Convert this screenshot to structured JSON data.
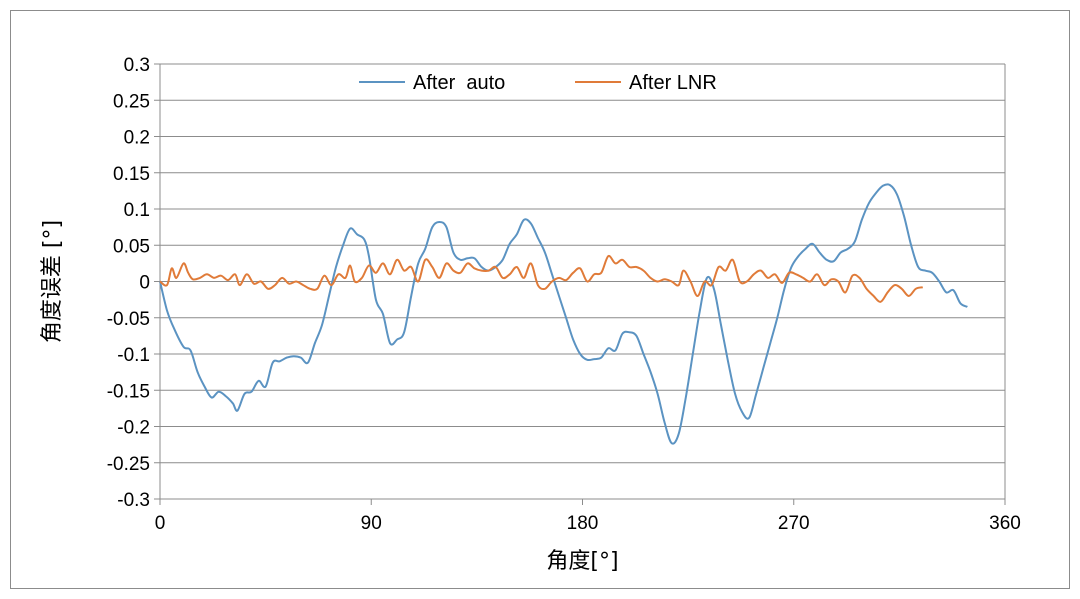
{
  "chart_data": {
    "type": "line",
    "title": "",
    "xlabel": "角度[°]",
    "ylabel": "角度误差 [°]",
    "xlim": [
      0,
      360
    ],
    "ylim": [
      -0.3,
      0.3
    ],
    "x_ticks": [
      "0",
      "90",
      "180",
      "270",
      "360"
    ],
    "y_ticks": [
      "0.3",
      "0.25",
      "0.2",
      "0.15",
      "0.1",
      "0.05",
      "0",
      "-0.05",
      "-0.1",
      "-0.15",
      "-0.2",
      "-0.25",
      "-0.3"
    ],
    "grid": true,
    "legend_position": "top-center",
    "series": [
      {
        "name": "After  auto",
        "color": "#5b93c2",
        "points": [
          [
            0,
            0
          ],
          [
            3,
            -0.04
          ],
          [
            6,
            -0.065
          ],
          [
            10,
            -0.09
          ],
          [
            13,
            -0.095
          ],
          [
            16,
            -0.125
          ],
          [
            19,
            -0.145
          ],
          [
            22,
            -0.16
          ],
          [
            25,
            -0.152
          ],
          [
            28,
            -0.158
          ],
          [
            31,
            -0.168
          ],
          [
            33,
            -0.178
          ],
          [
            36,
            -0.155
          ],
          [
            39,
            -0.152
          ],
          [
            42,
            -0.137
          ],
          [
            45,
            -0.145
          ],
          [
            48,
            -0.112
          ],
          [
            51,
            -0.11
          ],
          [
            54,
            -0.105
          ],
          [
            57,
            -0.103
          ],
          [
            60,
            -0.105
          ],
          [
            63,
            -0.112
          ],
          [
            66,
            -0.085
          ],
          [
            69,
            -0.06
          ],
          [
            72,
            -0.02
          ],
          [
            75,
            0.02
          ],
          [
            78,
            0.05
          ],
          [
            81,
            0.073
          ],
          [
            84,
            0.065
          ],
          [
            87,
            0.058
          ],
          [
            89,
            0.035
          ],
          [
            92,
            -0.025
          ],
          [
            95,
            -0.045
          ],
          [
            98,
            -0.085
          ],
          [
            101,
            -0.08
          ],
          [
            104,
            -0.07
          ],
          [
            107,
            -0.02
          ],
          [
            110,
            0.025
          ],
          [
            113,
            0.045
          ],
          [
            116,
            0.075
          ],
          [
            119,
            0.082
          ],
          [
            122,
            0.075
          ],
          [
            125,
            0.04
          ],
          [
            128,
            0.03
          ],
          [
            131,
            0.032
          ],
          [
            134,
            0.032
          ],
          [
            137,
            0.02
          ],
          [
            140,
            0.015
          ],
          [
            143,
            0.02
          ],
          [
            146,
            0.03
          ],
          [
            149,
            0.052
          ],
          [
            152,
            0.065
          ],
          [
            155,
            0.085
          ],
          [
            158,
            0.08
          ],
          [
            161,
            0.06
          ],
          [
            164,
            0.04
          ],
          [
            167,
            0.01
          ],
          [
            170,
            -0.02
          ],
          [
            173,
            -0.05
          ],
          [
            176,
            -0.08
          ],
          [
            179,
            -0.1
          ],
          [
            182,
            -0.108
          ],
          [
            185,
            -0.107
          ],
          [
            188,
            -0.105
          ],
          [
            191,
            -0.092
          ],
          [
            194,
            -0.095
          ],
          [
            197,
            -0.072
          ],
          [
            200,
            -0.07
          ],
          [
            203,
            -0.075
          ],
          [
            206,
            -0.1
          ],
          [
            209,
            -0.125
          ],
          [
            212,
            -0.155
          ],
          [
            215,
            -0.195
          ],
          [
            218,
            -0.223
          ],
          [
            221,
            -0.21
          ],
          [
            224,
            -0.16
          ],
          [
            227,
            -0.1
          ],
          [
            230,
            -0.04
          ],
          [
            233,
            0.005
          ],
          [
            236,
            -0.01
          ],
          [
            239,
            -0.06
          ],
          [
            242,
            -0.11
          ],
          [
            245,
            -0.155
          ],
          [
            248,
            -0.18
          ],
          [
            251,
            -0.188
          ],
          [
            254,
            -0.155
          ],
          [
            257,
            -0.12
          ],
          [
            260,
            -0.085
          ],
          [
            263,
            -0.05
          ],
          [
            266,
            -0.01
          ],
          [
            269,
            0.02
          ],
          [
            272,
            0.035
          ],
          [
            275,
            0.045
          ],
          [
            278,
            0.052
          ],
          [
            281,
            0.04
          ],
          [
            284,
            0.03
          ],
          [
            287,
            0.028
          ],
          [
            290,
            0.04
          ],
          [
            293,
            0.045
          ],
          [
            296,
            0.055
          ],
          [
            299,
            0.085
          ],
          [
            302,
            0.108
          ],
          [
            305,
            0.122
          ],
          [
            308,
            0.132
          ],
          [
            311,
            0.133
          ],
          [
            314,
            0.12
          ],
          [
            317,
            0.09
          ],
          [
            320,
            0.05
          ],
          [
            323,
            0.02
          ],
          [
            326,
            0.015
          ],
          [
            329,
            0.012
          ],
          [
            332,
            0.0
          ],
          [
            335,
            -0.015
          ],
          [
            338,
            -0.012
          ],
          [
            341,
            -0.03
          ],
          [
            344,
            -0.035
          ]
        ]
      },
      {
        "name": "After LNR",
        "color": "#e07b39",
        "points": [
          [
            0,
            0
          ],
          [
            3,
            -0.005
          ],
          [
            5,
            0.018
          ],
          [
            7,
            0.005
          ],
          [
            10,
            0.025
          ],
          [
            12,
            0.012
          ],
          [
            14,
            0.003
          ],
          [
            17,
            0.005
          ],
          [
            20,
            0.01
          ],
          [
            23,
            0.005
          ],
          [
            26,
            0.008
          ],
          [
            29,
            0.002
          ],
          [
            32,
            0.01
          ],
          [
            34,
            -0.005
          ],
          [
            37,
            0.01
          ],
          [
            40,
            -0.003
          ],
          [
            43,
            0.0
          ],
          [
            46,
            -0.01
          ],
          [
            49,
            -0.005
          ],
          [
            52,
            0.005
          ],
          [
            55,
            -0.003
          ],
          [
            58,
            0.0
          ],
          [
            61,
            -0.005
          ],
          [
            64,
            -0.01
          ],
          [
            67,
            -0.01
          ],
          [
            70,
            0.008
          ],
          [
            73,
            -0.005
          ],
          [
            76,
            0.01
          ],
          [
            79,
            0.005
          ],
          [
            81,
            0.022
          ],
          [
            83,
            0.0
          ],
          [
            86,
            0.005
          ],
          [
            89,
            0.022
          ],
          [
            92,
            0.012
          ],
          [
            95,
            0.025
          ],
          [
            98,
            0.01
          ],
          [
            101,
            0.03
          ],
          [
            104,
            0.015
          ],
          [
            107,
            0.02
          ],
          [
            110,
            0.0
          ],
          [
            113,
            0.03
          ],
          [
            116,
            0.02
          ],
          [
            119,
            0.005
          ],
          [
            122,
            0.025
          ],
          [
            125,
            0.015
          ],
          [
            128,
            0.012
          ],
          [
            131,
            0.025
          ],
          [
            134,
            0.018
          ],
          [
            137,
            0.015
          ],
          [
            140,
            0.015
          ],
          [
            143,
            0.02
          ],
          [
            146,
            0.005
          ],
          [
            149,
            0.01
          ],
          [
            152,
            0.02
          ],
          [
            155,
            0.005
          ],
          [
            158,
            0.025
          ],
          [
            161,
            -0.005
          ],
          [
            164,
            -0.01
          ],
          [
            167,
            0.0
          ],
          [
            170,
            0.005
          ],
          [
            173,
            0.002
          ],
          [
            176,
            0.012
          ],
          [
            179,
            0.018
          ],
          [
            182,
            0.0
          ],
          [
            185,
            0.01
          ],
          [
            188,
            0.012
          ],
          [
            191,
            0.035
          ],
          [
            194,
            0.025
          ],
          [
            197,
            0.03
          ],
          [
            200,
            0.02
          ],
          [
            203,
            0.02
          ],
          [
            206,
            0.015
          ],
          [
            209,
            0.005
          ],
          [
            212,
            0.0
          ],
          [
            215,
            0.003
          ],
          [
            218,
            0.0
          ],
          [
            221,
            -0.005
          ],
          [
            223,
            0.015
          ],
          [
            226,
            0.0
          ],
          [
            229,
            -0.02
          ],
          [
            232,
            0.0
          ],
          [
            235,
            -0.005
          ],
          [
            238,
            0.02
          ],
          [
            241,
            0.015
          ],
          [
            244,
            0.03
          ],
          [
            247,
            0.0
          ],
          [
            250,
            0.0
          ],
          [
            253,
            0.01
          ],
          [
            256,
            0.015
          ],
          [
            259,
            0.005
          ],
          [
            262,
            0.01
          ],
          [
            265,
            -0.002
          ],
          [
            268,
            0.012
          ],
          [
            271,
            0.01
          ],
          [
            274,
            0.005
          ],
          [
            277,
            0.0
          ],
          [
            280,
            0.01
          ],
          [
            283,
            -0.005
          ],
          [
            286,
            0.003
          ],
          [
            289,
            0.0
          ],
          [
            292,
            -0.015
          ],
          [
            295,
            0.008
          ],
          [
            298,
            0.005
          ],
          [
            301,
            -0.01
          ],
          [
            304,
            -0.02
          ],
          [
            307,
            -0.028
          ],
          [
            310,
            -0.015
          ],
          [
            313,
            -0.005
          ],
          [
            316,
            -0.01
          ],
          [
            319,
            -0.02
          ],
          [
            322,
            -0.01
          ],
          [
            325,
            -0.008
          ]
        ]
      }
    ]
  }
}
